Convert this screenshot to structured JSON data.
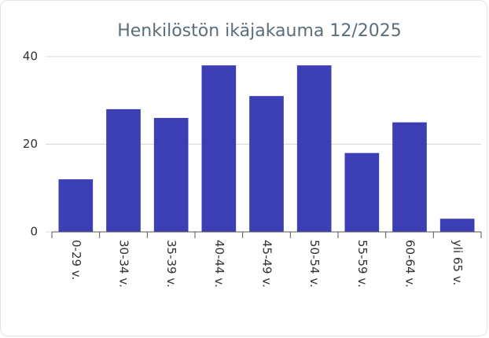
{
  "chart_data": {
    "type": "bar",
    "title": "Henkilöstön ikäjakauma 12/2025",
    "categories": [
      "0-29 v.",
      "30-34 v.",
      "35-39 v.",
      "40-44 v.",
      "45-49 v.",
      "50-54 v.",
      "55-59 v.",
      "60-64 v.",
      "yli 65 v."
    ],
    "values": [
      12,
      28,
      26,
      38,
      31,
      38,
      18,
      25,
      3
    ],
    "color": "#3b3fb3",
    "ylim": [
      0,
      40
    ],
    "yticks": [
      0,
      20,
      40
    ],
    "grid": true
  }
}
